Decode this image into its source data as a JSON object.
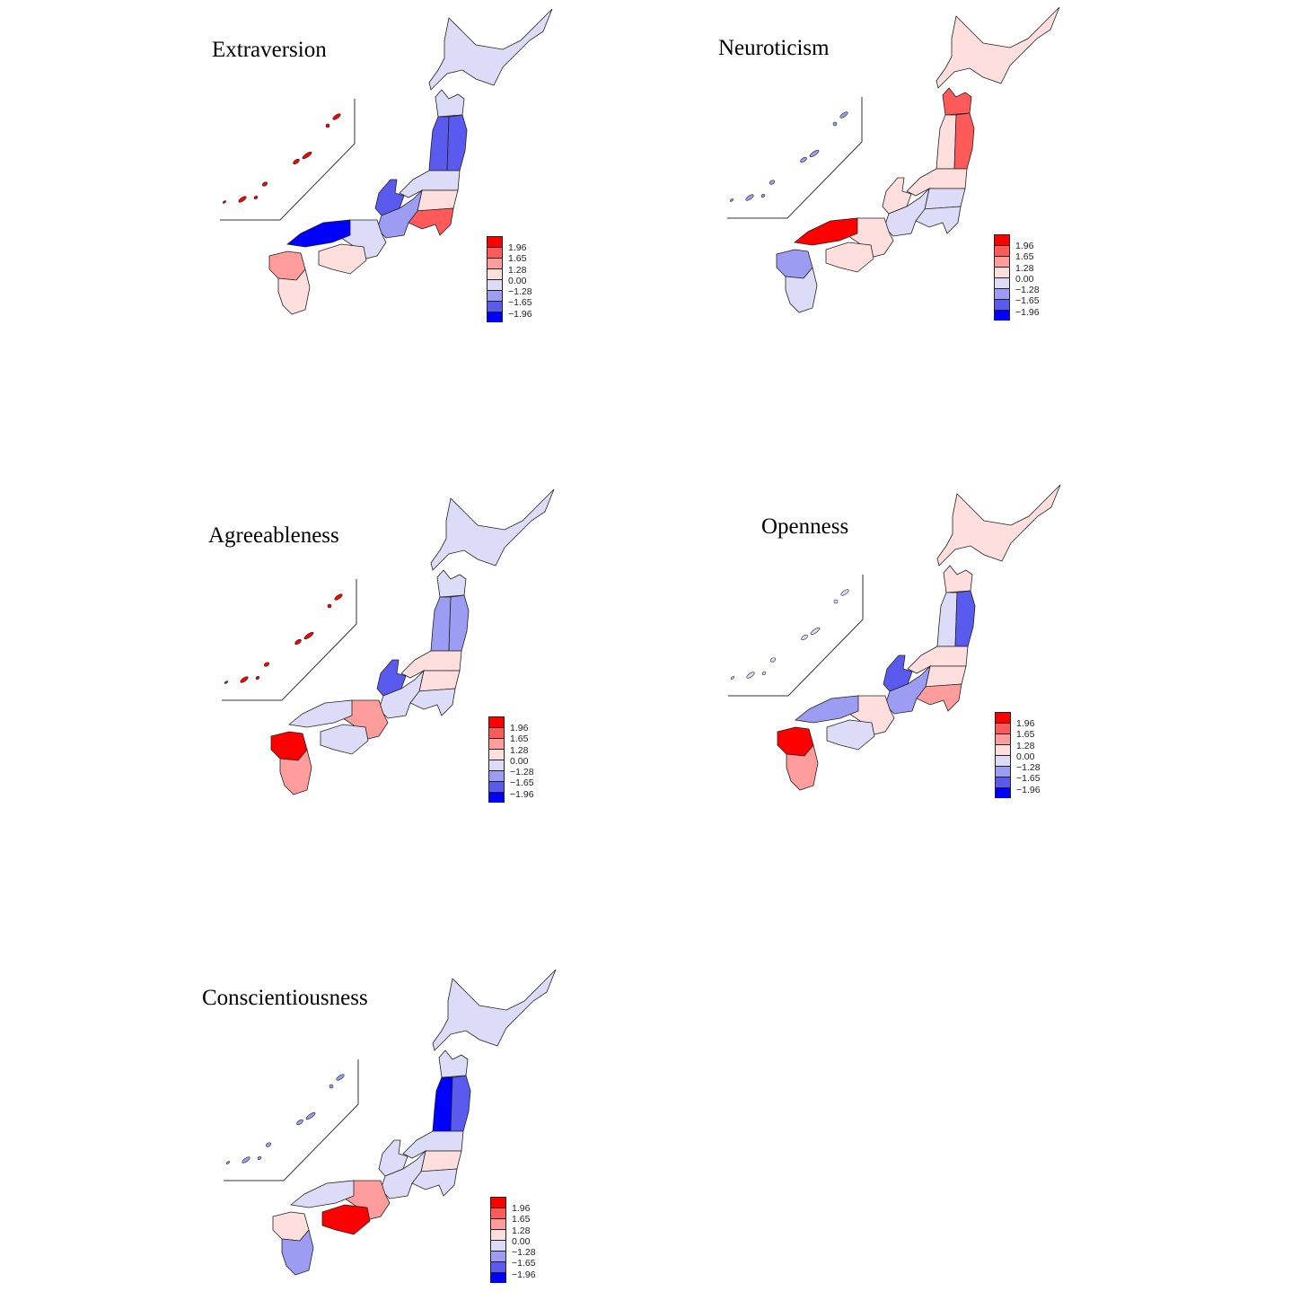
{
  "legend": {
    "labels": [
      "1.96",
      "1.65",
      "1.28",
      "0.00",
      "−1.28",
      "−1.65",
      "−1.96"
    ],
    "colors": [
      "#ff0000",
      "#ff5a5a",
      "#ff9c9c",
      "#ffdede",
      "#dcdcf8",
      "#9c9cf2",
      "#5a5aee",
      "#0000ff"
    ]
  },
  "panels": [
    {
      "title": "Extraversion",
      "regions": {
        "hokkaido": 4,
        "aomori": 4,
        "tohoku_w": 6,
        "tohoku_e": 6,
        "tohoku_s": 4,
        "kanto_n": 3,
        "kanto_s": 1,
        "hokuriku": 6,
        "chubu": 5,
        "kinki": 4,
        "chugoku": 7,
        "shikoku": 3,
        "kyushu_n": 2,
        "kyushu_s": 3,
        "okinawa": 0
      }
    },
    {
      "title": "Neuroticism",
      "regions": {
        "hokkaido": 3,
        "aomori": 1,
        "tohoku_w": 3,
        "tohoku_e": 1,
        "tohoku_s": 3,
        "kanto_n": 4,
        "kanto_s": 4,
        "hokuriku": 3,
        "chubu": 4,
        "kinki": 3,
        "chugoku": 0,
        "shikoku": 3,
        "kyushu_n": 5,
        "kyushu_s": 4,
        "okinawa": 5
      }
    },
    {
      "title": "Agreeableness",
      "regions": {
        "hokkaido": 4,
        "aomori": 4,
        "tohoku_w": 5,
        "tohoku_e": 5,
        "tohoku_s": 3,
        "kanto_n": 3,
        "kanto_s": 4,
        "hokuriku": 6,
        "chubu": 4,
        "kinki": 2,
        "chugoku": 4,
        "shikoku": 4,
        "kyushu_n": 0,
        "kyushu_s": 2,
        "okinawa": 0
      }
    },
    {
      "title": "Openness",
      "regions": {
        "hokkaido": 3,
        "aomori": 3,
        "tohoku_w": 4,
        "tohoku_e": 6,
        "tohoku_s": 3,
        "kanto_n": 3,
        "kanto_s": 2,
        "hokuriku": 6,
        "chubu": 5,
        "kinki": 3,
        "chugoku": 5,
        "shikoku": 4,
        "kyushu_n": 0,
        "kyushu_s": 2,
        "okinawa": 4
      }
    },
    {
      "title": "Conscientiousness",
      "regions": {
        "hokkaido": 4,
        "aomori": 4,
        "tohoku_w": 7,
        "tohoku_e": 6,
        "tohoku_s": 4,
        "kanto_n": 3,
        "kanto_s": 4,
        "hokuriku": 4,
        "chubu": 4,
        "kinki": 2,
        "chugoku": 4,
        "shikoku": 0,
        "kyushu_n": 3,
        "kyushu_s": 5,
        "okinawa": 5
      }
    }
  ]
}
